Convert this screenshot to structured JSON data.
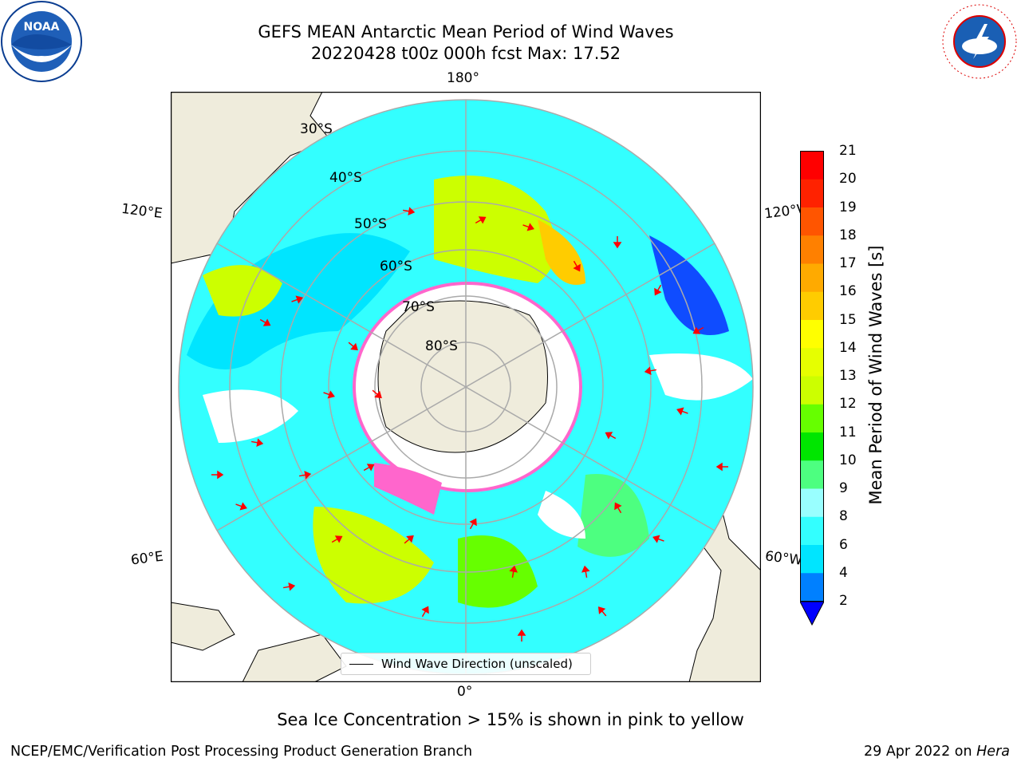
{
  "title": {
    "line1": "GEFS MEAN Antarctic Mean Period of Wind Waves",
    "line2": "20220428 t00z 000h fcst   Max: 17.52"
  },
  "logos": {
    "left": {
      "text": "NOAA",
      "icon": "noaa-logo"
    },
    "right": {
      "text": "NATIONAL WEATHER SERVICE",
      "icon": "nws-logo"
    }
  },
  "map": {
    "longitude_labels": {
      "top": "180°",
      "bottom": "0°",
      "upper_left": "120°E",
      "upper_right": "120°W",
      "lower_left": "60°E",
      "lower_right": "60°W"
    },
    "latitude_labels": [
      "30°S",
      "40°S",
      "50°S",
      "60°S",
      "70°S",
      "80°S"
    ],
    "colors": {
      "ocean_white": "#ffffff",
      "land": "#efecdc",
      "sea_ice": "#ff66cc",
      "arrow": "#ff0000",
      "gridline": "#aaaaaa"
    }
  },
  "legend": {
    "label": "Wind Wave Direction (unscaled)"
  },
  "colorbar": {
    "label": "Mean Period of Wind Waves [s]",
    "ticks": [
      "2",
      "4",
      "6",
      "8",
      "9",
      "10",
      "11",
      "12",
      "13",
      "14",
      "15",
      "16",
      "17",
      "18",
      "19",
      "20",
      "21"
    ],
    "colors": [
      "#0000ff",
      "#0080ff",
      "#00e5ff",
      "#33ffff",
      "#99ffff",
      "#4dff80",
      "#00e600",
      "#66ff00",
      "#ccff00",
      "#e6ff00",
      "#ffff00",
      "#ffcc00",
      "#ffaa00",
      "#ff8000",
      "#ff5500",
      "#ff2200",
      "#ff0000"
    ]
  },
  "note": "Sea Ice Concentration > 15% is shown in pink to yellow",
  "footer": {
    "left": "NCEP/EMC/Verification Post Processing Product Generation Branch",
    "right_date": "29 Apr 2022 on ",
    "right_machine": "Hera"
  }
}
